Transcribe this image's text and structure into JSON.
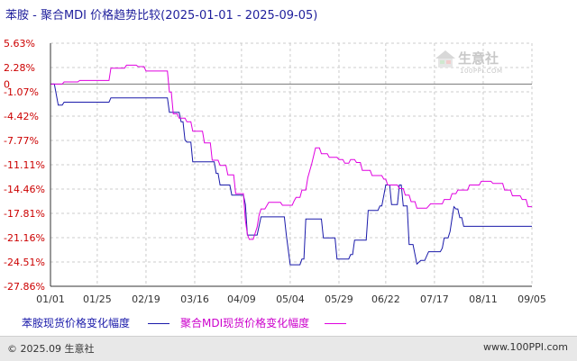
{
  "title": "苯胺 - 聚合MDI 价格趋势比较(2025-01-01 - 2025-09-05)",
  "watermark": {
    "brand": "生意社",
    "url": "100PPI.COM"
  },
  "footer": {
    "left": "© 2025.09 生意社",
    "right": "www.100PPI.com"
  },
  "colors": {
    "series1": "#1a1aaa",
    "series2": "#e000e0",
    "grid": "#cccccc",
    "axis_text": "#cc0000",
    "axis_line": "#333333"
  },
  "chart_data": {
    "type": "line",
    "title": "苯胺 - 聚合MDI 价格趋势比较(2025-01-01 - 2025-09-05)",
    "xlabel": "",
    "ylabel": "",
    "y_ticks": [
      "5.63%",
      "2.28%",
      "-1.07%",
      "-4.42%",
      "-7.77%",
      "-11.11%",
      "-14.46%",
      "-17.81%",
      "-21.16%",
      "-24.51%",
      "-27.86%"
    ],
    "y_tick_values": [
      5.63,
      2.28,
      -1.07,
      -4.42,
      -7.77,
      -11.11,
      -14.46,
      -17.81,
      -21.16,
      -24.51,
      -27.86
    ],
    "zero_label": "0",
    "ylim": [
      -27.86,
      5.63
    ],
    "x_ticks": [
      "01/01",
      "01/25",
      "02/19",
      "03/16",
      "04/09",
      "05/04",
      "05/29",
      "06/22",
      "07/17",
      "08/11",
      "09/05"
    ],
    "x_tick_days": [
      0,
      24,
      49,
      74,
      98,
      123,
      148,
      172,
      197,
      222,
      247
    ],
    "xlim": [
      0,
      247
    ],
    "grid": true,
    "series": [
      {
        "name": "苯胺现货价格变化幅度",
        "color": "#1a1aaa",
        "points": [
          [
            0,
            0
          ],
          [
            2,
            0
          ],
          [
            4,
            -2.9
          ],
          [
            6,
            -2.9
          ],
          [
            7,
            -2.5
          ],
          [
            30,
            -2.5
          ],
          [
            31,
            -1.9
          ],
          [
            60,
            -1.9
          ],
          [
            61,
            -3.9
          ],
          [
            66,
            -3.9
          ],
          [
            67,
            -5.2
          ],
          [
            68,
            -5.2
          ],
          [
            69,
            -7.7
          ],
          [
            70,
            -8
          ],
          [
            72,
            -8
          ],
          [
            73,
            -10.7
          ],
          [
            84,
            -10.7
          ],
          [
            85,
            -12.3
          ],
          [
            86,
            -12.3
          ],
          [
            87,
            -13.9
          ],
          [
            92,
            -13.9
          ],
          [
            93,
            -15.3
          ],
          [
            99,
            -15.3
          ],
          [
            100,
            -16.6
          ],
          [
            101,
            -20.8
          ],
          [
            106,
            -20.8
          ],
          [
            108,
            -18.3
          ],
          [
            120,
            -18.3
          ],
          [
            121,
            -20.8
          ],
          [
            123,
            -24.9
          ],
          [
            128,
            -24.9
          ],
          [
            129,
            -24.1
          ],
          [
            130,
            -24.1
          ],
          [
            131,
            -18.6
          ],
          [
            139,
            -18.6
          ],
          [
            140,
            -21.2
          ],
          [
            146,
            -21.2
          ],
          [
            147,
            -24.1
          ],
          [
            153,
            -24.1
          ],
          [
            154,
            -23.5
          ],
          [
            155,
            -23.5
          ],
          [
            156,
            -21.5
          ],
          [
            162,
            -21.5
          ],
          [
            163,
            -17.4
          ],
          [
            168,
            -17.4
          ],
          [
            169,
            -16.8
          ],
          [
            170,
            -16.8
          ],
          [
            172,
            -13.9
          ],
          [
            174,
            -13.9
          ],
          [
            175,
            -16.6
          ],
          [
            178,
            -16.6
          ],
          [
            179,
            -13.9
          ],
          [
            180,
            -13.9
          ],
          [
            181,
            -16.8
          ],
          [
            183,
            -16.8
          ],
          [
            184,
            -22.1
          ],
          [
            186,
            -22.1
          ],
          [
            188,
            -24.8
          ],
          [
            190,
            -24.3
          ],
          [
            192,
            -24.3
          ],
          [
            194,
            -23.1
          ],
          [
            200,
            -23.1
          ],
          [
            201,
            -22.6
          ],
          [
            202,
            -21.2
          ],
          [
            204,
            -21.2
          ],
          [
            205,
            -20.3
          ],
          [
            206,
            -18.5
          ],
          [
            207,
            -16.9
          ],
          [
            208,
            -17.2
          ],
          [
            209,
            -17.2
          ],
          [
            210,
            -18.4
          ],
          [
            211,
            -18.4
          ],
          [
            212,
            -19.6
          ],
          [
            247,
            -19.6
          ]
        ]
      },
      {
        "name": "聚合MDI现货价格变化幅度",
        "color": "#e000e0",
        "points": [
          [
            0,
            0
          ],
          [
            6,
            0
          ],
          [
            7,
            0.3
          ],
          [
            14,
            0.3
          ],
          [
            15,
            0.5
          ],
          [
            30,
            0.5
          ],
          [
            31,
            2.2
          ],
          [
            38,
            2.2
          ],
          [
            39,
            2.6
          ],
          [
            44,
            2.6
          ],
          [
            45,
            2.4
          ],
          [
            48,
            2.4
          ],
          [
            49,
            1.8
          ],
          [
            60,
            1.8
          ],
          [
            61,
            -1.1
          ],
          [
            62,
            -1.1
          ],
          [
            63,
            -4.1
          ],
          [
            65,
            -4.1
          ],
          [
            66,
            -4.7
          ],
          [
            69,
            -4.7
          ],
          [
            70,
            -5.2
          ],
          [
            72,
            -5.2
          ],
          [
            73,
            -6.5
          ],
          [
            78,
            -6.5
          ],
          [
            79,
            -8.1
          ],
          [
            82,
            -8.1
          ],
          [
            83,
            -10.5
          ],
          [
            86,
            -10.5
          ],
          [
            87,
            -11.2
          ],
          [
            90,
            -11.2
          ],
          [
            91,
            -12.5
          ],
          [
            94,
            -12.5
          ],
          [
            95,
            -15.1
          ],
          [
            99,
            -15.1
          ],
          [
            100,
            -18.8
          ],
          [
            101,
            -20.7
          ],
          [
            102,
            -21.4
          ],
          [
            104,
            -21.4
          ],
          [
            106,
            -19.7
          ],
          [
            107,
            -18.1
          ],
          [
            108,
            -17.2
          ],
          [
            110,
            -17.2
          ],
          [
            112,
            -16.3
          ],
          [
            118,
            -16.3
          ],
          [
            119,
            -16.7
          ],
          [
            124,
            -16.7
          ],
          [
            125,
            -16.1
          ],
          [
            126,
            -15.6
          ],
          [
            128,
            -15.6
          ],
          [
            129,
            -14.6
          ],
          [
            131,
            -14.6
          ],
          [
            132,
            -12.9
          ],
          [
            134,
            -11.0
          ],
          [
            136,
            -8.8
          ],
          [
            138,
            -8.8
          ],
          [
            139,
            -9.6
          ],
          [
            142,
            -9.6
          ],
          [
            143,
            -10.1
          ],
          [
            147,
            -10.1
          ],
          [
            148,
            -10.4
          ],
          [
            150,
            -10.4
          ],
          [
            151,
            -10.9
          ],
          [
            153,
            -10.9
          ],
          [
            154,
            -10.4
          ],
          [
            156,
            -10.4
          ],
          [
            157,
            -10.8
          ],
          [
            159,
            -10.8
          ],
          [
            160,
            -11.9
          ],
          [
            164,
            -11.9
          ],
          [
            165,
            -12.6
          ],
          [
            170,
            -12.6
          ],
          [
            171,
            -13.1
          ],
          [
            172,
            -13.1
          ],
          [
            173,
            -13.9
          ],
          [
            178,
            -13.9
          ],
          [
            179,
            -14.4
          ],
          [
            181,
            -14.4
          ],
          [
            182,
            -15.3
          ],
          [
            184,
            -15.3
          ],
          [
            185,
            -16.2
          ],
          [
            187,
            -16.2
          ],
          [
            188,
            -17.1
          ],
          [
            193,
            -17.1
          ],
          [
            195,
            -16.5
          ],
          [
            201,
            -16.5
          ],
          [
            202,
            -15.9
          ],
          [
            205,
            -15.9
          ],
          [
            206,
            -15.1
          ],
          [
            208,
            -15.1
          ],
          [
            209,
            -14.6
          ],
          [
            214,
            -14.6
          ],
          [
            215,
            -13.9
          ],
          [
            220,
            -13.9
          ],
          [
            221,
            -13.4
          ],
          [
            226,
            -13.4
          ],
          [
            227,
            -13.7
          ],
          [
            232,
            -13.7
          ],
          [
            233,
            -14.6
          ],
          [
            236,
            -14.6
          ],
          [
            237,
            -15.4
          ],
          [
            241,
            -15.4
          ],
          [
            242,
            -15.9
          ],
          [
            244,
            -15.9
          ],
          [
            245,
            -16.9
          ],
          [
            247,
            -16.9
          ]
        ]
      }
    ]
  },
  "legend": {
    "series1_label": "苯胺现货价格变化幅度",
    "series2_label": "聚合MDI现货价格变化幅度"
  }
}
